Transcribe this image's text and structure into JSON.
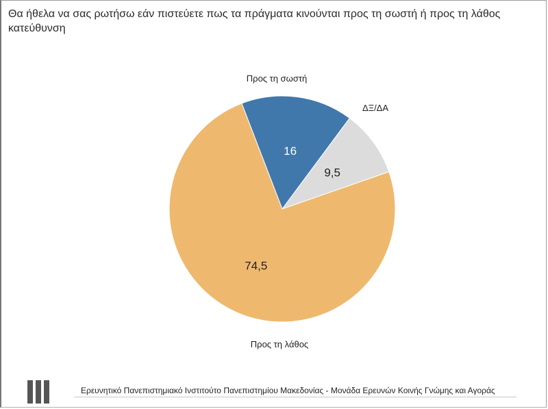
{
  "chart_data": {
    "type": "pie",
    "title": "Θα ήθελα να σας ρωτήσω εάν πιστεύετε πως τα πράγματα κινούνται προς τη σωστή ή προς τη λάθος κατεύθυνση",
    "slices": [
      {
        "label": "Προς τη σωστή",
        "value": 16,
        "value_label": "16",
        "color": "#4178AC",
        "value_color": "#ffffff"
      },
      {
        "label": "ΔΞ/ΔΑ",
        "value": 9.5,
        "value_label": "9,5",
        "color": "#DCDCDC",
        "value_color": "#222222"
      },
      {
        "label": "Προς τη λάθος",
        "value": 74.5,
        "value_label": "74,5",
        "color": "#EEB96E",
        "value_color": "#222222"
      }
    ],
    "legend": "none",
    "start_angle": "top-left, clockwise"
  },
  "footer": {
    "text": "Ερευνητικό Πανεπιστημιακό Ινστιτούτο Πανεπιστημίου Μακεδονίας - Μονάδα Ερευνών Κοινής Γνώμης και Αγοράς",
    "logo_icon": "institute-bars-icon"
  }
}
